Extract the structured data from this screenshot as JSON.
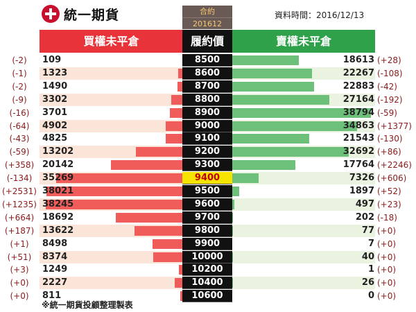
{
  "header": {
    "logo_text": "統一期貨",
    "contract_label": "合約",
    "contract_value": "201612",
    "datetime": "資料時間：2016/12/13",
    "buy_title": "買權未平倉",
    "strike_title": "履約價",
    "sell_title": "賣權未平倉"
  },
  "footer": "※統一期貨投顧整理製表",
  "colors": {
    "call_bar": "#ef5c5a",
    "put_bar": "#6cc07a",
    "atm_highlight": "#f6e400"
  },
  "chart_data": {
    "type": "bar",
    "title": "",
    "atm_strike": "9400",
    "rows": [
      {
        "strike": "8500",
        "call_oi": 109,
        "call_chg": "(-2)",
        "put_oi": 18613,
        "put_chg": "(+28)"
      },
      {
        "strike": "8600",
        "call_oi": 1323,
        "call_chg": "(-1)",
        "put_oi": 22267,
        "put_chg": "(-108)"
      },
      {
        "strike": "8700",
        "call_oi": 1490,
        "call_chg": "(-2)",
        "put_oi": 22883,
        "put_chg": "(-42)"
      },
      {
        "strike": "8800",
        "call_oi": 3302,
        "call_chg": "(-9)",
        "put_oi": 27164,
        "put_chg": "(-192)"
      },
      {
        "strike": "8900",
        "call_oi": 3701,
        "call_chg": "(-16)",
        "put_oi": 38794,
        "put_chg": "(-59)"
      },
      {
        "strike": "9000",
        "call_oi": 4902,
        "call_chg": "(-64)",
        "put_oi": 34863,
        "put_chg": "(+1377)"
      },
      {
        "strike": "9100",
        "call_oi": 4825,
        "call_chg": "(-43)",
        "put_oi": 21543,
        "put_chg": "(-130)"
      },
      {
        "strike": "9200",
        "call_oi": 13202,
        "call_chg": "(-59)",
        "put_oi": 32692,
        "put_chg": "(+86)"
      },
      {
        "strike": "9300",
        "call_oi": 20142,
        "call_chg": "(+358)",
        "put_oi": 17764,
        "put_chg": "(+2246)"
      },
      {
        "strike": "9400",
        "call_oi": 35269,
        "call_chg": "(-134)",
        "put_oi": 7326,
        "put_chg": "(+606)"
      },
      {
        "strike": "9500",
        "call_oi": 38021,
        "call_chg": "(+2531)",
        "put_oi": 1897,
        "put_chg": "(+52)"
      },
      {
        "strike": "9600",
        "call_oi": 38245,
        "call_chg": "(+1235)",
        "put_oi": 497,
        "put_chg": "(+23)"
      },
      {
        "strike": "9700",
        "call_oi": 18692,
        "call_chg": "(+664)",
        "put_oi": 202,
        "put_chg": "(-18)"
      },
      {
        "strike": "9800",
        "call_oi": 13622,
        "call_chg": "(+187)",
        "put_oi": 77,
        "put_chg": "(+0)"
      },
      {
        "strike": "9900",
        "call_oi": 8498,
        "call_chg": "(+1)",
        "put_oi": 7,
        "put_chg": "(+0)"
      },
      {
        "strike": "10000",
        "call_oi": 8374,
        "call_chg": "(+51)",
        "put_oi": 40,
        "put_chg": "(+0)"
      },
      {
        "strike": "10200",
        "call_oi": 1249,
        "call_chg": "(+3)",
        "put_oi": 1,
        "put_chg": "(+0)"
      },
      {
        "strike": "10400",
        "call_oi": 2227,
        "call_chg": "(+0)",
        "put_oi": 26,
        "put_chg": "(+0)"
      },
      {
        "strike": "10600",
        "call_oi": 811,
        "call_chg": "(+0)",
        "put_oi": 0,
        "put_chg": "(+0)"
      }
    ]
  }
}
